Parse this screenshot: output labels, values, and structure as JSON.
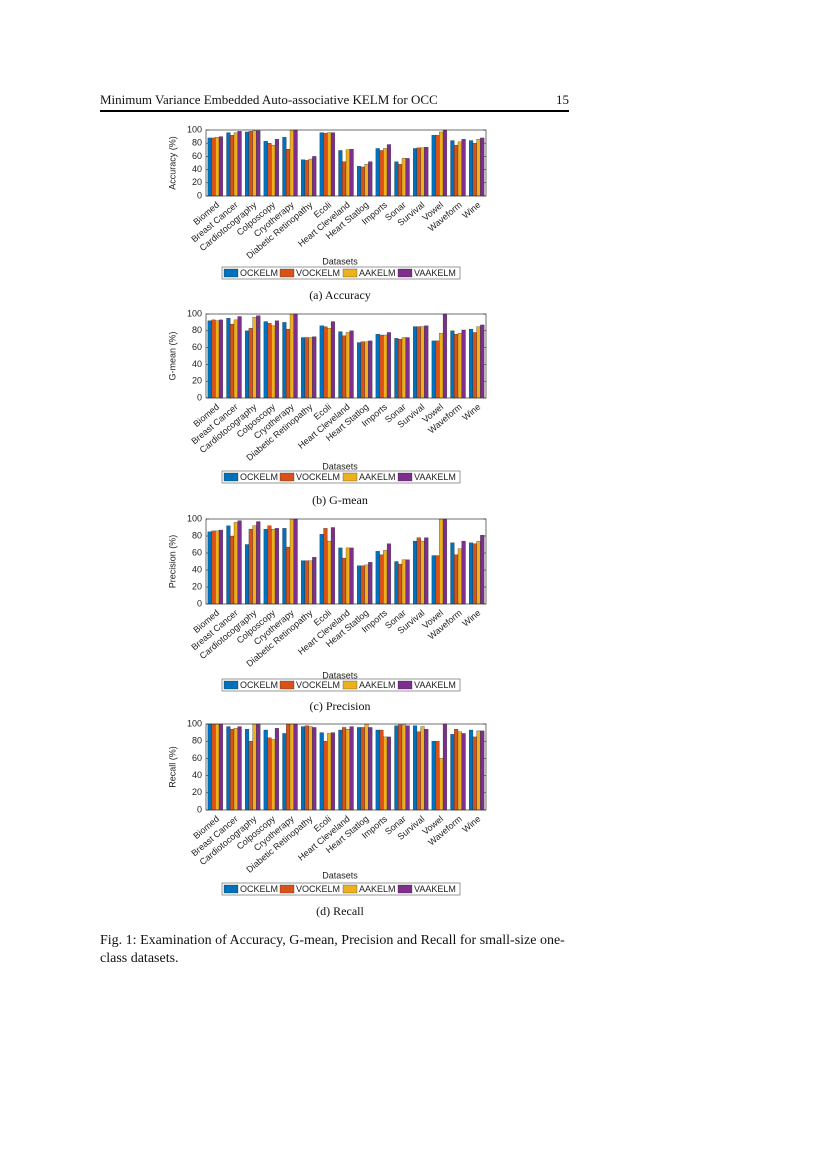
{
  "header": {
    "title": "Minimum Variance Embedded Auto-associative KELM for OCC",
    "page_number": "15"
  },
  "figure_caption": "Fig. 1: Examination of Accuracy, G-mean, Precision and Recall for small-size one-class datasets.",
  "chart_data": [
    {
      "type": "bar",
      "caption": "(a) Accuracy",
      "ylabel": "Accuracy (%)",
      "xlabel": "Datasets",
      "categories": [
        "Biomed",
        "Breast Cancer",
        "Cardiotocography",
        "Colposcopy",
        "Cryotherapy",
        "Diabetic Retinopathy",
        "Ecoli",
        "Heart Cleveland",
        "Heart Statlog",
        "Imports",
        "Sonar",
        "Survival",
        "Vowel",
        "Waveform",
        "Wine"
      ],
      "series": [
        {
          "name": "OCKELM",
          "color": "#0072bd",
          "values": [
            88,
            96,
            97,
            83,
            89,
            55,
            96,
            69,
            45,
            72,
            52,
            72,
            92,
            84,
            84
          ]
        },
        {
          "name": "VOCKELM",
          "color": "#d95319",
          "values": [
            88,
            92,
            98,
            80,
            71,
            54,
            95,
            52,
            44,
            69,
            48,
            73,
            92,
            77,
            80
          ]
        },
        {
          "name": "AAKELM",
          "color": "#edb120",
          "values": [
            89,
            96,
            99,
            77,
            100,
            56,
            96,
            70,
            48,
            72,
            57,
            73,
            97,
            82,
            86
          ]
        },
        {
          "name": "VAAKELM",
          "color": "#7e2f8e",
          "values": [
            90,
            98,
            99,
            86,
            100,
            60,
            96,
            71,
            52,
            78,
            57,
            74,
            100,
            86,
            88
          ]
        }
      ],
      "ylim": [
        0,
        100
      ],
      "yticks": [
        0,
        20,
        40,
        60,
        80,
        100
      ]
    },
    {
      "type": "bar",
      "caption": "(b) G-mean",
      "ylabel": "G-mean (%)",
      "xlabel": "Datasets",
      "categories": [
        "Biomed",
        "Breast Cancer",
        "Cardiotocography",
        "Colposcopy",
        "Cryotherapy",
        "Diabetic Retinopathy",
        "Ecoli",
        "Heart Cleveland",
        "Heart Statlog",
        "Imports",
        "Sonar",
        "Survival",
        "Vowel",
        "Waveform",
        "Wine"
      ],
      "series": [
        {
          "name": "OCKELM",
          "color": "#0072bd",
          "values": [
            92,
            95,
            80,
            91,
            90,
            72,
            86,
            79,
            66,
            76,
            71,
            85,
            68,
            80,
            82
          ]
        },
        {
          "name": "VOCKELM",
          "color": "#d95319",
          "values": [
            93,
            88,
            83,
            89,
            82,
            72,
            85,
            74,
            67,
            75,
            70,
            85,
            68,
            76,
            78
          ]
        },
        {
          "name": "AAKELM",
          "color": "#edb120",
          "values": [
            92,
            93,
            96,
            86,
            100,
            72,
            83,
            78,
            67,
            75,
            72,
            85,
            77,
            77,
            85
          ]
        },
        {
          "name": "VAAKELM",
          "color": "#7e2f8e",
          "values": [
            93,
            97,
            98,
            92,
            100,
            73,
            91,
            80,
            68,
            78,
            72,
            86,
            100,
            81,
            87
          ]
        }
      ],
      "ylim": [
        0,
        100
      ],
      "yticks": [
        0,
        20,
        40,
        60,
        80,
        100
      ]
    },
    {
      "type": "bar",
      "caption": "(c) Precision",
      "ylabel": "Precision (%)",
      "xlabel": "Datasets",
      "categories": [
        "Biomed",
        "Breast Cancer",
        "Cardiotocography",
        "Colposcopy",
        "Cryotherapy",
        "Diabetic Retinopathy",
        "Ecoli",
        "Heart Cleveland",
        "Heart Statlog",
        "Imports",
        "Sonar",
        "Survival",
        "Vowel",
        "Waveform",
        "Wine"
      ],
      "series": [
        {
          "name": "OCKELM",
          "color": "#0072bd",
          "values": [
            85,
            92,
            70,
            88,
            89,
            51,
            82,
            66,
            45,
            62,
            50,
            74,
            57,
            72,
            72
          ]
        },
        {
          "name": "VOCKELM",
          "color": "#d95319",
          "values": [
            86,
            80,
            88,
            92,
            67,
            51,
            89,
            54,
            45,
            58,
            47,
            78,
            57,
            58,
            71
          ]
        },
        {
          "name": "AAKELM",
          "color": "#edb120",
          "values": [
            86,
            96,
            92,
            88,
            100,
            51,
            74,
            66,
            46,
            63,
            52,
            74,
            100,
            65,
            74
          ]
        },
        {
          "name": "VAAKELM",
          "color": "#7e2f8e",
          "values": [
            87,
            98,
            97,
            89,
            100,
            55,
            90,
            66,
            49,
            71,
            52,
            78,
            100,
            74,
            81
          ]
        }
      ],
      "ylim": [
        0,
        100
      ],
      "yticks": [
        0,
        20,
        40,
        60,
        80,
        100
      ]
    },
    {
      "type": "bar",
      "caption": "(d) Recall",
      "ylabel": "Recall (%)",
      "xlabel": "Datasets",
      "categories": [
        "Biomed",
        "Breast Cancer",
        "Cardiotocography",
        "Colposcopy",
        "Cryotherapy",
        "Diabetic Retinopathy",
        "Ecoli",
        "Heart Cleveland",
        "Heart Statlog",
        "Imports",
        "Sonar",
        "Survival",
        "Vowel",
        "Waveform",
        "Wine"
      ],
      "series": [
        {
          "name": "OCKELM",
          "color": "#0072bd",
          "values": [
            100,
            97,
            94,
            93,
            89,
            97,
            90,
            93,
            96,
            93,
            98,
            98,
            80,
            88,
            93
          ]
        },
        {
          "name": "VOCKELM",
          "color": "#d95319",
          "values": [
            100,
            94,
            80,
            84,
            100,
            98,
            80,
            96,
            96,
            93,
            99,
            91,
            80,
            94,
            85
          ]
        },
        {
          "name": "AAKELM",
          "color": "#edb120",
          "values": [
            100,
            95,
            100,
            82,
            100,
            97,
            89,
            94,
            100,
            85,
            99,
            97,
            60,
            91,
            92
          ]
        },
        {
          "name": "VAAKELM",
          "color": "#7e2f8e",
          "values": [
            100,
            97,
            100,
            95,
            100,
            96,
            90,
            97,
            96,
            85,
            98,
            94,
            100,
            89,
            92
          ]
        }
      ],
      "ylim": [
        0,
        100
      ],
      "yticks": [
        0,
        20,
        40,
        60,
        80,
        100
      ]
    }
  ]
}
